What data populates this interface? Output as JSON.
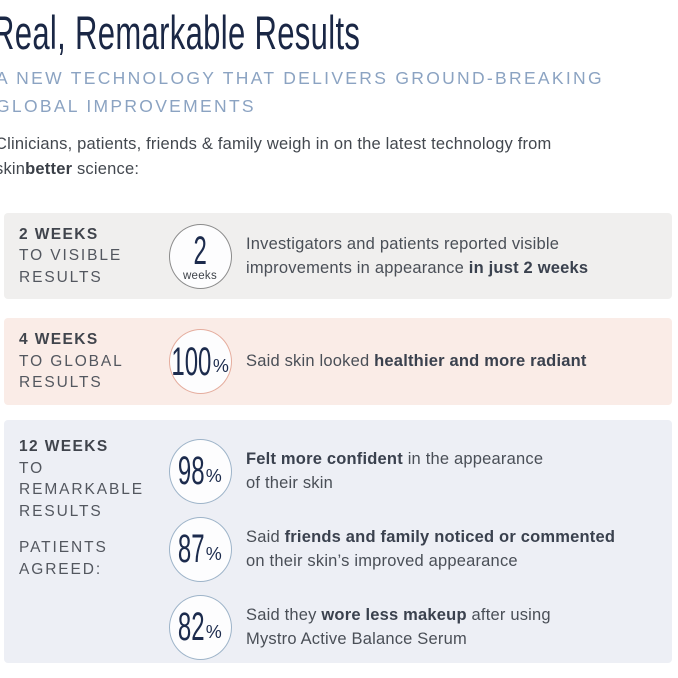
{
  "header": {
    "title": "Real, Remarkable Results",
    "subtitle_line1": "A NEW TECHNOLOGY THAT DELIVERS GROUND-BREAKING",
    "subtitle_line2": "GLOBAL IMPROVEMENTS",
    "intro_pre": "Clinicians, patients, friends & family weigh in on the latest technology from skin",
    "intro_brand_bold": "better",
    "intro_post": " science:"
  },
  "colors": {
    "title_navy": "#1a2745",
    "subtitle_blue": "#8ba3c2",
    "body_text": "#43484f",
    "stat_navy": "#1c2b4d",
    "section1_bg": "#f0efee",
    "section2_bg": "#faece7",
    "section3_bg": "#edeff5",
    "circle_gray_border": "#8c8c8c",
    "circle_salmon_border": "#e5ad9e",
    "circle_blue_border": "#9eb4c9"
  },
  "sections": {
    "two_weeks": {
      "label_head": "2 WEEKS",
      "label_line2": "TO VISIBLE",
      "label_line3": "RESULTS",
      "stat_value": "2",
      "stat_unit": "weeks",
      "desc_line1": "Investigators and patients reported visible",
      "desc_line2_pre": "improvements in appearance ",
      "desc_line2_bold": "in just 2 weeks"
    },
    "four_weeks": {
      "label_head": "4 WEEKS",
      "label_line2": "TO GLOBAL",
      "label_line3": "RESULTS",
      "stat_value": "100",
      "stat_suffix": "%",
      "desc_pre": "Said skin looked ",
      "desc_bold": "healthier and more radiant"
    },
    "twelve_weeks": {
      "label_head": "12 WEEKS",
      "label_line2": "TO",
      "label_line3": "REMARKABLE",
      "label_line4": "RESULTS",
      "label_sub1": "PATIENTS",
      "label_sub2": "AGREED:",
      "rows": [
        {
          "stat_value": "98",
          "stat_suffix": "%",
          "line1_bold": "Felt more confident",
          "line1_post": " in the appearance",
          "line2": "of their skin"
        },
        {
          "stat_value": "87",
          "stat_suffix": "%",
          "line1_pre": "Said ",
          "line1_bold": "friends and family noticed or commented",
          "line2": "on their skin’s improved appearance"
        },
        {
          "stat_value": "82",
          "stat_suffix": "%",
          "line1_pre": "Said they ",
          "line1_bold": "wore less makeup",
          "line1_post": " after using",
          "line2": "Mystro Active Balance Serum"
        }
      ]
    }
  }
}
